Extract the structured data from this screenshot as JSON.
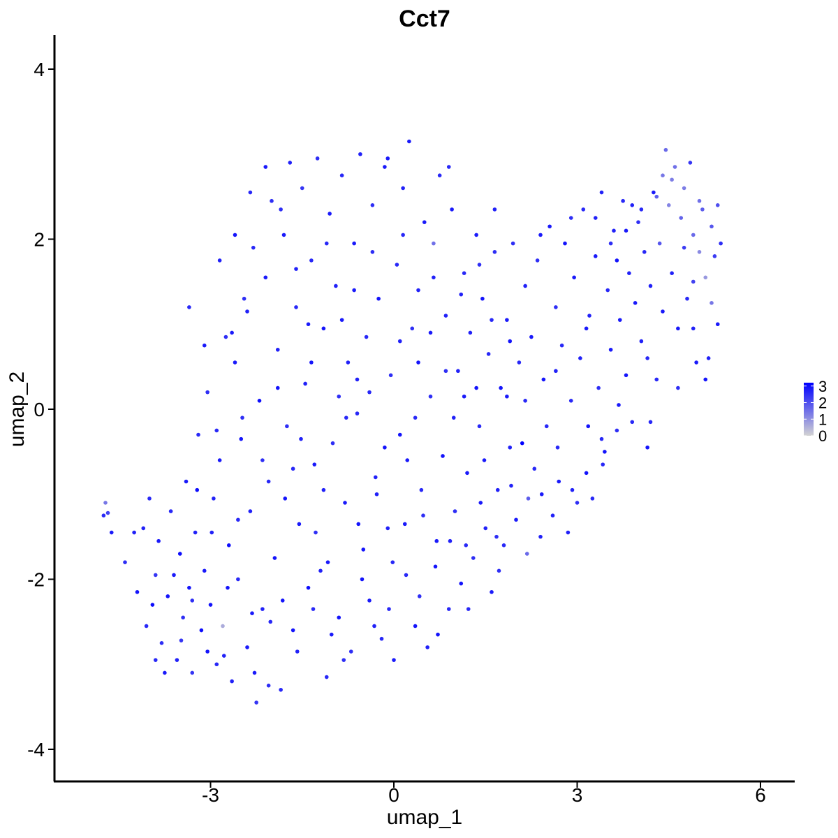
{
  "chart_data": {
    "type": "scatter",
    "title": "Cct7",
    "xlabel": "umap_1",
    "ylabel": "umap_2",
    "xlim": [
      -5.7,
      6.5
    ],
    "ylim": [
      -4.4,
      4.4
    ],
    "xticks": [
      -3,
      0,
      3,
      6
    ],
    "yticks": [
      -4,
      -2,
      0,
      2,
      4
    ],
    "xtick_labels": [
      "-3",
      "0",
      "3",
      "6"
    ],
    "ytick_labels": [
      "-4",
      "-2",
      "0",
      "2",
      "4"
    ],
    "grid": false,
    "legend": {
      "position": "right",
      "type": "colorbar",
      "ticks": [
        0,
        1,
        2,
        3
      ],
      "tick_labels": [
        "0",
        "1",
        "2",
        "3"
      ],
      "low_color": "#d3d3d3",
      "high_color": "#0000ff"
    },
    "value_range": [
      0,
      3.2
    ],
    "point_color_note": "color encodes Cct7 expression",
    "points": [
      [
        -4.75,
        -1.25,
        2.6
      ],
      [
        -4.72,
        -1.1,
        1.4
      ],
      [
        -4.68,
        -1.22,
        2.2
      ],
      [
        -4.62,
        -1.45,
        2.8
      ],
      [
        -4.4,
        -1.8,
        2.5
      ],
      [
        -4.2,
        -2.15,
        2.9
      ],
      [
        -4.1,
        -1.4,
        2.7
      ],
      [
        -4.05,
        -2.55,
        2.6
      ],
      [
        -3.95,
        -2.3,
        3.0
      ],
      [
        -3.9,
        -1.95,
        2.4
      ],
      [
        -3.85,
        -1.55,
        2.8
      ],
      [
        -3.8,
        -2.75,
        2.5
      ],
      [
        -3.7,
        -2.2,
        2.9
      ],
      [
        -3.65,
        -1.2,
        2.6
      ],
      [
        -3.55,
        -2.95,
        2.7
      ],
      [
        -3.5,
        -1.7,
        3.0
      ],
      [
        -3.45,
        -2.45,
        2.5
      ],
      [
        -3.4,
        -0.85,
        2.8
      ],
      [
        -3.35,
        -2.1,
        2.9
      ],
      [
        -3.3,
        -3.1,
        2.4
      ],
      [
        -3.25,
        -1.45,
        2.7
      ],
      [
        -3.2,
        -0.3,
        2.6
      ],
      [
        -3.15,
        -2.6,
        3.0
      ],
      [
        -3.1,
        -1.9,
        2.8
      ],
      [
        -3.05,
        0.2,
        2.5
      ],
      [
        -3.0,
        -2.3,
        2.9
      ],
      [
        -2.95,
        -1.05,
        2.7
      ],
      [
        -2.9,
        -3.0,
        2.6
      ],
      [
        -2.85,
        -0.6,
        2.8
      ],
      [
        -2.8,
        -2.55,
        0.6
      ],
      [
        -2.75,
        0.85,
        2.5
      ],
      [
        -2.7,
        -1.6,
        3.0
      ],
      [
        -2.65,
        -3.2,
        2.7
      ],
      [
        -2.6,
        0.55,
        2.8
      ],
      [
        -2.55,
        -2.0,
        2.6
      ],
      [
        -2.5,
        -0.35,
        2.9
      ],
      [
        -2.45,
        1.3,
        2.5
      ],
      [
        -2.4,
        -2.8,
        2.8
      ],
      [
        -2.35,
        -1.2,
        2.7
      ],
      [
        -2.3,
        1.9,
        2.6
      ],
      [
        -2.25,
        -3.45,
        2.4
      ],
      [
        -2.2,
        0.1,
        3.0
      ],
      [
        -2.15,
        -2.35,
        2.7
      ],
      [
        -2.1,
        1.55,
        2.8
      ],
      [
        -2.05,
        -0.85,
        2.6
      ],
      [
        -2.0,
        2.45,
        2.5
      ],
      [
        -1.95,
        -1.75,
        2.9
      ],
      [
        -1.9,
        0.7,
        2.7
      ],
      [
        -1.85,
        -3.3,
        2.6
      ],
      [
        -1.8,
        2.05,
        2.8
      ],
      [
        -1.75,
        -0.2,
        2.5
      ],
      [
        -1.7,
        2.9,
        2.7
      ],
      [
        -1.65,
        -2.6,
        2.9
      ],
      [
        -1.6,
        1.2,
        2.6
      ],
      [
        -1.55,
        -1.35,
        2.8
      ],
      [
        -1.5,
        2.6,
        2.4
      ],
      [
        -1.45,
        0.3,
        2.7
      ],
      [
        -1.4,
        -2.1,
        3.0
      ],
      [
        -1.35,
        1.75,
        2.6
      ],
      [
        -1.3,
        -0.65,
        2.8
      ],
      [
        -1.25,
        2.95,
        2.5
      ],
      [
        -1.2,
        -1.9,
        2.7
      ],
      [
        -1.15,
        0.95,
        2.9
      ],
      [
        -1.1,
        -3.15,
        2.6
      ],
      [
        -1.05,
        2.3,
        2.8
      ],
      [
        -1.0,
        -0.4,
        2.5
      ],
      [
        -0.95,
        1.45,
        2.7
      ],
      [
        -0.9,
        -2.45,
        2.9
      ],
      [
        -0.85,
        2.75,
        2.6
      ],
      [
        -0.8,
        -1.1,
        2.8
      ],
      [
        -0.75,
        0.55,
        2.7
      ],
      [
        -0.7,
        -2.85,
        2.5
      ],
      [
        -0.65,
        1.95,
        2.8
      ],
      [
        -0.6,
        -0.05,
        2.6
      ],
      [
        -0.55,
        3.0,
        2.7
      ],
      [
        -0.5,
        -1.65,
        2.9
      ],
      [
        -0.45,
        0.85,
        2.6
      ],
      [
        -0.4,
        -2.25,
        2.8
      ],
      [
        -0.35,
        2.4,
        2.5
      ],
      [
        -0.3,
        -0.8,
        2.7
      ],
      [
        -0.25,
        1.3,
        2.9
      ],
      [
        -0.2,
        -2.7,
        2.6
      ],
      [
        -0.15,
        2.85,
        2.8
      ],
      [
        -0.1,
        -1.4,
        2.7
      ],
      [
        -0.05,
        0.4,
        2.5
      ],
      [
        0.0,
        -2.95,
        2.8
      ],
      [
        0.05,
        1.7,
        2.6
      ],
      [
        0.1,
        -0.3,
        2.9
      ],
      [
        0.15,
        2.6,
        2.7
      ],
      [
        0.2,
        -1.95,
        2.6
      ],
      [
        0.25,
        3.15,
        2.8
      ],
      [
        0.3,
        0.95,
        2.5
      ],
      [
        0.35,
        -2.55,
        2.9
      ],
      [
        0.4,
        1.4,
        2.7
      ],
      [
        0.45,
        -0.95,
        2.6
      ],
      [
        0.5,
        2.2,
        2.8
      ],
      [
        0.55,
        -2.8,
        2.7
      ],
      [
        0.6,
        0.15,
        2.5
      ],
      [
        0.65,
        1.95,
        1.5
      ],
      [
        0.7,
        -1.55,
        2.8
      ],
      [
        0.75,
        2.75,
        2.6
      ],
      [
        0.8,
        -0.55,
        2.9
      ],
      [
        0.85,
        1.1,
        2.7
      ],
      [
        0.9,
        -2.35,
        2.6
      ],
      [
        0.95,
        2.35,
        2.8
      ],
      [
        1.0,
        -1.2,
        2.5
      ],
      [
        1.05,
        0.45,
        2.7
      ],
      [
        1.1,
        -2.05,
        2.9
      ],
      [
        1.15,
        1.6,
        2.6
      ],
      [
        1.2,
        -0.75,
        2.8
      ],
      [
        1.25,
        0.9,
        2.7
      ],
      [
        1.3,
        -1.75,
        2.5
      ],
      [
        1.35,
        2.05,
        2.8
      ],
      [
        1.4,
        -0.2,
        2.6
      ],
      [
        1.45,
        1.3,
        2.9
      ],
      [
        1.5,
        -1.4,
        2.7
      ],
      [
        1.55,
        0.65,
        2.6
      ],
      [
        1.6,
        -2.15,
        2.8
      ],
      [
        1.65,
        1.85,
        2.5
      ],
      [
        1.7,
        -0.95,
        2.7
      ],
      [
        1.75,
        0.25,
        2.9
      ],
      [
        1.8,
        -1.6,
        2.6
      ],
      [
        1.85,
        1.05,
        2.8
      ],
      [
        1.9,
        -0.45,
        2.7
      ],
      [
        1.95,
        1.95,
        2.5
      ],
      [
        2.0,
        -1.3,
        2.8
      ],
      [
        2.05,
        0.55,
        2.6
      ],
      [
        2.1,
        -0.4,
        3.2
      ],
      [
        2.15,
        1.45,
        2.7
      ],
      [
        2.2,
        -1.05,
        1.8
      ],
      [
        2.25,
        0.85,
        2.8
      ],
      [
        2.3,
        -0.7,
        2.6
      ],
      [
        2.35,
        1.75,
        2.5
      ],
      [
        2.4,
        -1.5,
        2.7
      ],
      [
        2.45,
        0.35,
        2.9
      ],
      [
        2.5,
        -0.2,
        2.6
      ],
      [
        2.55,
        2.15,
        2.8
      ],
      [
        2.6,
        -1.25,
        2.7
      ],
      [
        2.65,
        1.2,
        2.5
      ],
      [
        2.7,
        -0.85,
        2.8
      ],
      [
        2.75,
        0.75,
        2.6
      ],
      [
        2.8,
        1.95,
        2.9
      ],
      [
        2.85,
        -1.45,
        2.7
      ],
      [
        2.9,
        0.1,
        2.6
      ],
      [
        2.95,
        1.55,
        2.8
      ],
      [
        3.0,
        -1.1,
        2.5
      ],
      [
        3.05,
        0.6,
        2.7
      ],
      [
        3.1,
        2.35,
        2.6
      ],
      [
        3.15,
        -0.75,
        2.9
      ],
      [
        3.2,
        1.1,
        2.7
      ],
      [
        3.25,
        -1.05,
        2.6
      ],
      [
        3.3,
        1.8,
        2.8
      ],
      [
        3.35,
        0.25,
        2.5
      ],
      [
        3.4,
        2.55,
        2.7
      ],
      [
        3.45,
        -0.5,
        2.9
      ],
      [
        3.5,
        1.4,
        2.6
      ],
      [
        3.55,
        0.7,
        2.8
      ],
      [
        3.6,
        2.1,
        2.7
      ],
      [
        3.65,
        -0.25,
        2.5
      ],
      [
        3.7,
        1.05,
        2.8
      ],
      [
        3.75,
        2.45,
        2.6
      ],
      [
        3.8,
        0.4,
        2.9
      ],
      [
        3.85,
        1.6,
        2.7
      ],
      [
        3.9,
        -0.15,
        2.6
      ],
      [
        3.95,
        1.25,
        2.8
      ],
      [
        4.0,
        2.2,
        2.5
      ],
      [
        4.05,
        0.8,
        2.7
      ],
      [
        4.1,
        1.85,
        2.6
      ],
      [
        4.15,
        -0.45,
        2.9
      ],
      [
        4.2,
        1.45,
        2.7
      ],
      [
        4.25,
        2.55,
        2.8
      ],
      [
        4.3,
        0.35,
        2.6
      ],
      [
        4.35,
        1.95,
        1.9
      ],
      [
        4.4,
        2.75,
        1.4
      ],
      [
        4.45,
        3.05,
        1.6
      ],
      [
        4.5,
        2.4,
        1.2
      ],
      [
        4.55,
        1.6,
        2.7
      ],
      [
        4.6,
        2.85,
        1.5
      ],
      [
        4.65,
        0.95,
        2.8
      ],
      [
        4.7,
        2.25,
        1.7
      ],
      [
        4.75,
        2.6,
        1.3
      ],
      [
        4.8,
        1.3,
        2.6
      ],
      [
        4.85,
        2.9,
        2.4
      ],
      [
        4.9,
        2.05,
        1.6
      ],
      [
        4.95,
        0.55,
        2.8
      ],
      [
        5.0,
        1.85,
        1.1
      ],
      [
        5.05,
        2.35,
        1.8
      ],
      [
        5.1,
        1.55,
        0.9
      ],
      [
        5.15,
        0.6,
        2.7
      ],
      [
        5.2,
        2.15,
        1.9
      ],
      [
        5.25,
        1.8,
        2.3
      ],
      [
        5.3,
        2.4,
        2.0
      ],
      [
        5.35,
        1.95,
        2.5
      ],
      [
        5.3,
        1.0,
        2.8
      ],
      [
        5.2,
        1.25,
        1.4
      ],
      [
        4.9,
        1.5,
        2.2
      ],
      [
        -4.0,
        -1.05,
        2.6
      ],
      [
        -3.75,
        -3.1,
        2.8
      ],
      [
        -3.48,
        -2.72,
        2.4
      ],
      [
        -3.22,
        -0.95,
        3.0
      ],
      [
        -2.98,
        -1.45,
        2.7
      ],
      [
        -2.72,
        -2.1,
        2.9
      ],
      [
        -2.48,
        -0.1,
        2.5
      ],
      [
        -2.28,
        -3.1,
        2.8
      ],
      [
        -2.02,
        -2.5,
        2.6
      ],
      [
        -1.78,
        -1.05,
        2.9
      ],
      [
        -1.52,
        -0.35,
        2.7
      ],
      [
        -1.28,
        -1.45,
        2.5
      ],
      [
        -1.02,
        -2.65,
        2.8
      ],
      [
        -0.78,
        -0.1,
        2.6
      ],
      [
        -0.52,
        -2.0,
        2.9
      ],
      [
        -0.28,
        -1.0,
        2.7
      ],
      [
        -0.02,
        -1.8,
        2.6
      ],
      [
        0.22,
        -0.6,
        2.8
      ],
      [
        0.48,
        -1.25,
        2.5
      ],
      [
        0.72,
        -2.65,
        2.9
      ],
      [
        0.98,
        -0.1,
        2.7
      ],
      [
        1.22,
        -2.35,
        2.6
      ],
      [
        1.48,
        -0.6,
        2.8
      ],
      [
        1.72,
        -1.9,
        2.5
      ],
      [
        -3.35,
        1.2,
        2.6
      ],
      [
        -3.1,
        0.75,
        2.8
      ],
      [
        -2.85,
        1.75,
        2.7
      ],
      [
        -2.6,
        2.05,
        2.9
      ],
      [
        -2.35,
        2.55,
        2.6
      ],
      [
        -2.1,
        2.85,
        2.8
      ],
      [
        -1.85,
        2.35,
        2.5
      ],
      [
        -1.6,
        1.65,
        2.7
      ],
      [
        -1.35,
        0.55,
        2.9
      ],
      [
        -1.1,
        1.95,
        2.6
      ],
      [
        -0.85,
        1.05,
        2.8
      ],
      [
        -0.6,
        0.35,
        2.7
      ],
      [
        -0.35,
        1.85,
        2.5
      ],
      [
        -0.1,
        2.95,
        2.8
      ],
      [
        0.15,
        2.05,
        2.6
      ],
      [
        0.4,
        0.55,
        2.9
      ],
      [
        0.65,
        1.55,
        2.7
      ],
      [
        0.9,
        2.85,
        2.6
      ],
      [
        1.15,
        0.15,
        2.8
      ],
      [
        1.4,
        1.7,
        2.5
      ],
      [
        1.65,
        2.35,
        2.7
      ],
      [
        1.9,
        0.8,
        2.9
      ],
      [
        2.15,
        0.1,
        2.6
      ],
      [
        2.4,
        2.05,
        2.8
      ],
      [
        2.65,
        0.45,
        2.7
      ],
      [
        2.9,
        2.25,
        2.5
      ],
      [
        3.15,
        0.95,
        2.8
      ],
      [
        3.4,
        -0.35,
        2.6
      ],
      [
        3.65,
        1.75,
        2.9
      ],
      [
        3.9,
        2.4,
        2.7
      ],
      [
        4.15,
        0.6,
        2.6
      ],
      [
        4.4,
        1.15,
        2.8
      ],
      [
        4.65,
        0.25,
        2.5
      ],
      [
        4.9,
        0.95,
        2.7
      ],
      [
        5.1,
        0.35,
        2.9
      ],
      [
        4.2,
        -0.15,
        2.6
      ],
      [
        -4.25,
        -1.45,
        2.7
      ],
      [
        -3.9,
        -2.95,
        2.6
      ],
      [
        -3.6,
        -1.95,
        2.8
      ],
      [
        -3.3,
        -2.25,
        2.5
      ],
      [
        -3.05,
        -2.85,
        2.9
      ],
      [
        -2.78,
        -2.9,
        2.7
      ],
      [
        -2.55,
        -1.3,
        2.6
      ],
      [
        -2.32,
        -2.4,
        2.8
      ],
      [
        -2.05,
        -3.25,
        2.5
      ],
      [
        -1.82,
        -2.25,
        2.9
      ],
      [
        -1.58,
        -2.85,
        2.7
      ],
      [
        -1.32,
        -2.35,
        2.6
      ],
      [
        -1.08,
        -1.8,
        2.8
      ],
      [
        -0.82,
        -2.95,
        2.5
      ],
      [
        -0.58,
        -1.35,
        2.9
      ],
      [
        -0.32,
        -2.55,
        2.7
      ],
      [
        -0.08,
        -2.35,
        2.6
      ],
      [
        0.18,
        -1.35,
        2.8
      ],
      [
        0.42,
        -2.2,
        2.5
      ],
      [
        0.68,
        -1.85,
        2.9
      ],
      [
        0.92,
        -1.55,
        2.7
      ],
      [
        1.18,
        -1.6,
        2.6
      ],
      [
        1.42,
        -1.1,
        2.8
      ],
      [
        1.68,
        -1.5,
        2.5
      ],
      [
        1.92,
        -0.9,
        2.7
      ],
      [
        2.18,
        -1.7,
        1.6
      ],
      [
        2.42,
        -1.0,
        2.8
      ],
      [
        2.68,
        -0.45,
        2.6
      ],
      [
        2.92,
        -0.95,
        2.7
      ],
      [
        3.18,
        -0.2,
        2.9
      ],
      [
        3.42,
        -0.65,
        2.6
      ],
      [
        3.68,
        0.05,
        2.8
      ],
      [
        -2.9,
        -0.25,
        2.6
      ],
      [
        -2.65,
        0.9,
        2.8
      ],
      [
        -2.4,
        1.15,
        2.7
      ],
      [
        -2.15,
        -0.6,
        2.5
      ],
      [
        -1.9,
        0.25,
        2.9
      ],
      [
        -1.65,
        -0.7,
        2.6
      ],
      [
        -1.4,
        1.0,
        2.8
      ],
      [
        -1.15,
        -0.95,
        2.7
      ],
      [
        -0.9,
        0.15,
        2.5
      ],
      [
        -0.65,
        1.4,
        2.8
      ],
      [
        -0.4,
        0.2,
        2.6
      ],
      [
        -0.15,
        -0.45,
        2.9
      ],
      [
        0.1,
        0.8,
        2.7
      ],
      [
        0.35,
        -0.1,
        2.6
      ],
      [
        0.6,
        0.9,
        2.8
      ],
      [
        0.85,
        0.45,
        2.5
      ],
      [
        1.1,
        1.35,
        2.7
      ],
      [
        1.35,
        0.25,
        2.9
      ],
      [
        1.6,
        1.05,
        2.6
      ],
      [
        1.85,
        0.15,
        2.8
      ],
      [
        3.3,
        2.25,
        2.7
      ],
      [
        3.55,
        1.95,
        2.5
      ],
      [
        3.8,
        2.1,
        2.8
      ],
      [
        4.05,
        2.35,
        2.6
      ],
      [
        4.3,
        2.5,
        1.8
      ],
      [
        4.55,
        2.7,
        1.3
      ],
      [
        4.75,
        1.9,
        2.3
      ],
      [
        5.0,
        2.45,
        1.5
      ]
    ]
  }
}
